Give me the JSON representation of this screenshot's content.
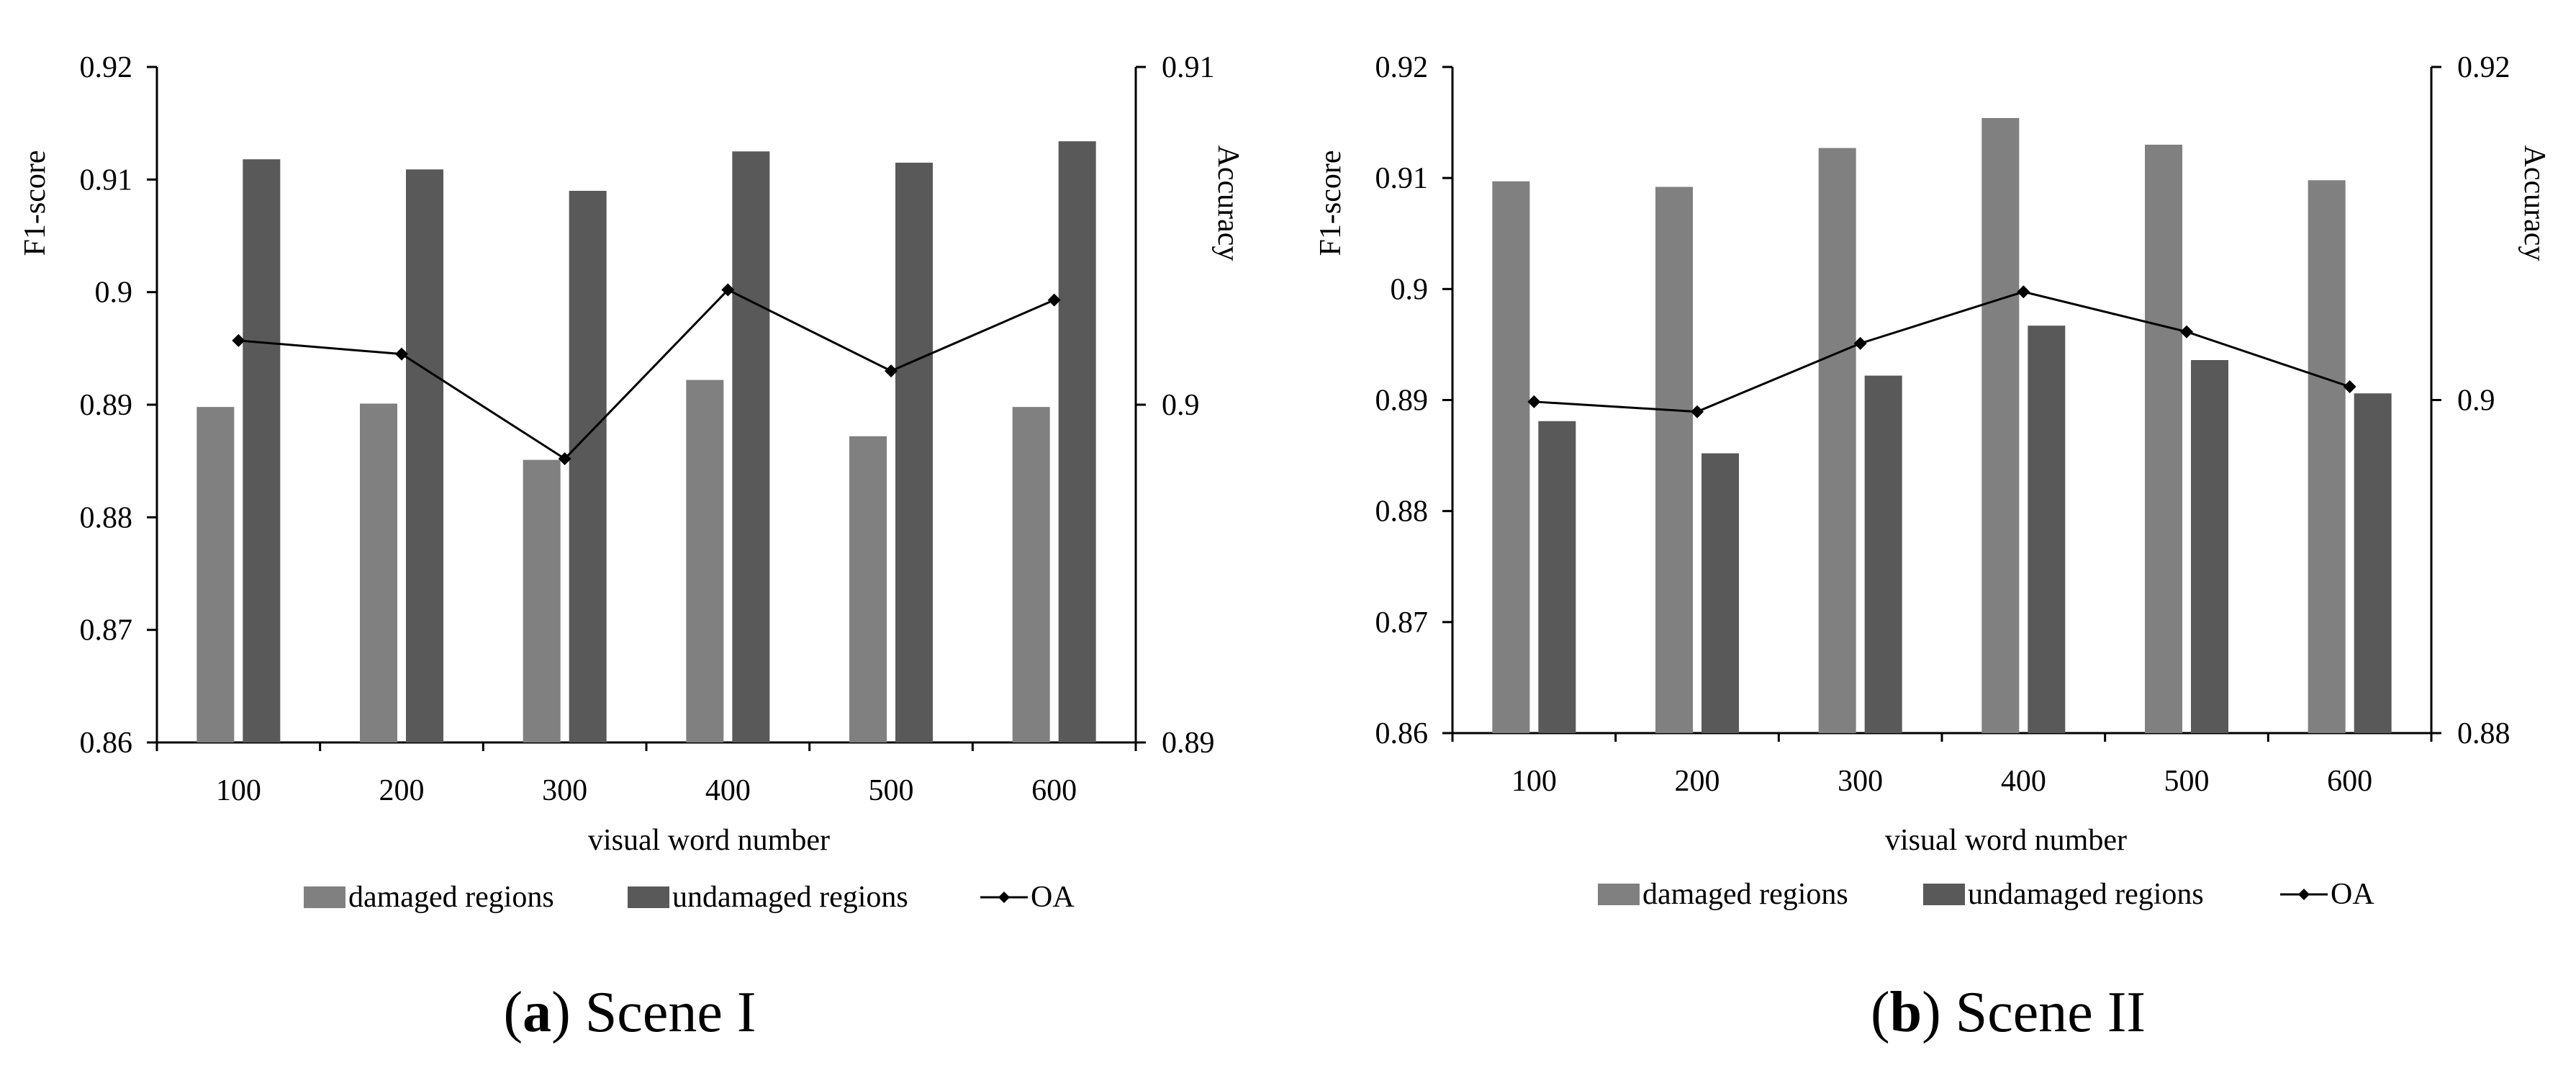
{
  "figure": {
    "panels": [
      {
        "caption": {
          "open": "(",
          "letter": "a",
          "close": ")",
          "text": " Scene I"
        },
        "legend": [
          "damaged regions",
          "undamaged regions",
          "OA"
        ]
      },
      {
        "caption": {
          "open": "(",
          "letter": "b",
          "close": ")",
          "text": " Scene II"
        },
        "legend": [
          "damaged regions",
          "undamaged regions",
          "OA"
        ]
      }
    ]
  },
  "colors": {
    "damaged": "#808080",
    "undamaged": "#595959",
    "oa_line": "#000000",
    "axis": "#000000"
  },
  "chart_data": [
    {
      "type": "bar",
      "title": "Scene I",
      "xlabel": "visual word number",
      "ylabel": "F1-score",
      "y2label": "Accuracy",
      "categories": [
        "100",
        "200",
        "300",
        "400",
        "500",
        "600"
      ],
      "ylim": [
        0.86,
        0.92
      ],
      "yticks": [
        "0.86",
        "0.87",
        "0.88",
        "0.89",
        "0.9",
        "0.91",
        "0.92"
      ],
      "y2lim": [
        0.89,
        0.91
      ],
      "y2ticks": [
        "0.89",
        "0.9",
        "0.91"
      ],
      "series": [
        {
          "name": "damaged regions",
          "type": "bar",
          "axis": "left",
          "values": [
            0.8898,
            0.8901,
            0.8851,
            0.8922,
            0.8872,
            0.8898
          ]
        },
        {
          "name": "undamaged regions",
          "type": "bar",
          "axis": "left",
          "values": [
            0.9118,
            0.9109,
            0.909,
            0.9125,
            0.9115,
            0.9134
          ]
        },
        {
          "name": "OA",
          "type": "line",
          "axis": "right",
          "values": [
            0.9019,
            0.9015,
            0.8984,
            0.9034,
            0.901,
            0.9031
          ]
        }
      ],
      "legend_position": "bottom"
    },
    {
      "type": "bar",
      "title": "Scene II",
      "xlabel": "visual word number",
      "ylabel": "F1-score",
      "y2label": "Accuracy",
      "categories": [
        "100",
        "200",
        "300",
        "400",
        "500",
        "600"
      ],
      "ylim": [
        0.86,
        0.92
      ],
      "yticks": [
        "0.86",
        "0.87",
        "0.88",
        "0.89",
        "0.9",
        "0.91",
        "0.92"
      ],
      "y2lim": [
        0.88,
        0.92
      ],
      "y2ticks": [
        "0.88",
        "0.9",
        "0.92"
      ],
      "series": [
        {
          "name": "damaged regions",
          "type": "bar",
          "axis": "left",
          "values": [
            0.9097,
            0.9092,
            0.9127,
            0.9154,
            0.913,
            0.9098
          ]
        },
        {
          "name": "undamaged regions",
          "type": "bar",
          "axis": "left",
          "values": [
            0.8881,
            0.8852,
            0.8922,
            0.8967,
            0.8936,
            0.8906
          ]
        },
        {
          "name": "OA",
          "type": "line",
          "axis": "right",
          "values": [
            0.8999,
            0.8993,
            0.9034,
            0.9065,
            0.9041,
            0.9008
          ]
        }
      ],
      "legend_position": "bottom"
    }
  ]
}
